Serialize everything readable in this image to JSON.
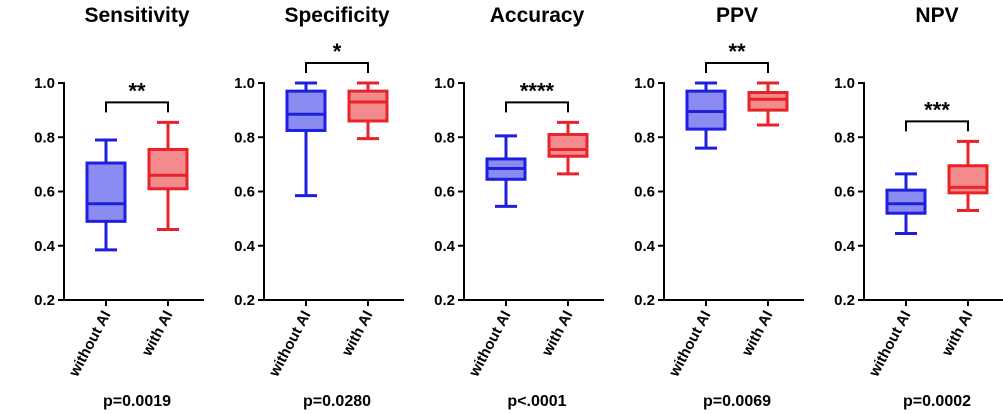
{
  "chart_data": [
    {
      "type": "box",
      "title": "Sensitivity",
      "categories": [
        "without AI",
        "with AI"
      ],
      "ylim": [
        0.2,
        1.0
      ],
      "yticks": [
        "0.2",
        "0.4",
        "0.6",
        "0.8",
        "1.0"
      ],
      "boxes": [
        {
          "category": "without AI",
          "min": 0.385,
          "q1": 0.49,
          "median": 0.555,
          "q3": 0.705,
          "max": 0.79
        },
        {
          "category": "with AI",
          "min": 0.46,
          "q1": 0.61,
          "median": 0.66,
          "q3": 0.755,
          "max": 0.855
        }
      ],
      "significance": "**",
      "p_value": "p=0.0019"
    },
    {
      "type": "box",
      "title": "Specificity",
      "categories": [
        "without AI",
        "with AI"
      ],
      "ylim": [
        0.2,
        1.0
      ],
      "yticks": [
        "0.2",
        "0.4",
        "0.6",
        "0.8",
        "1.0"
      ],
      "boxes": [
        {
          "category": "without AI",
          "min": 0.585,
          "q1": 0.825,
          "median": 0.885,
          "q3": 0.97,
          "max": 1.0
        },
        {
          "category": "with AI",
          "min": 0.795,
          "q1": 0.86,
          "median": 0.93,
          "q3": 0.97,
          "max": 1.0
        }
      ],
      "significance": "*",
      "p_value": "p=0.0280"
    },
    {
      "type": "box",
      "title": "Accuracy",
      "categories": [
        "without AI",
        "with AI"
      ],
      "ylim": [
        0.2,
        1.0
      ],
      "yticks": [
        "0.2",
        "0.4",
        "0.6",
        "0.8",
        "1.0"
      ],
      "boxes": [
        {
          "category": "without AI",
          "min": 0.545,
          "q1": 0.645,
          "median": 0.685,
          "q3": 0.72,
          "max": 0.805
        },
        {
          "category": "with AI",
          "min": 0.665,
          "q1": 0.73,
          "median": 0.755,
          "q3": 0.81,
          "max": 0.855
        }
      ],
      "significance": "****",
      "p_value": "p<.0001"
    },
    {
      "type": "box",
      "title": "PPV",
      "categories": [
        "without AI",
        "with AI"
      ],
      "ylim": [
        0.2,
        1.0
      ],
      "yticks": [
        "0.2",
        "0.4",
        "0.6",
        "0.8",
        "1.0"
      ],
      "boxes": [
        {
          "category": "without AI",
          "min": 0.76,
          "q1": 0.83,
          "median": 0.895,
          "q3": 0.97,
          "max": 1.0
        },
        {
          "category": "with AI",
          "min": 0.845,
          "q1": 0.9,
          "median": 0.94,
          "q3": 0.965,
          "max": 1.0
        }
      ],
      "significance": "**",
      "p_value": "p=0.0069"
    },
    {
      "type": "box",
      "title": "NPV",
      "categories": [
        "without AI",
        "with AI"
      ],
      "ylim": [
        0.2,
        1.0
      ],
      "yticks": [
        "0.2",
        "0.4",
        "0.6",
        "0.8",
        "1.0"
      ],
      "boxes": [
        {
          "category": "without AI",
          "min": 0.445,
          "q1": 0.52,
          "median": 0.555,
          "q3": 0.605,
          "max": 0.665
        },
        {
          "category": "with AI",
          "min": 0.53,
          "q1": 0.595,
          "median": 0.615,
          "q3": 0.695,
          "max": 0.785
        }
      ],
      "significance": "***",
      "p_value": "p=0.0002"
    }
  ],
  "colors": {
    "without_ai_stroke": "#1f1fe0",
    "without_ai_fill": "#8a8cf2",
    "with_ai_stroke": "#e8232a",
    "with_ai_fill": "#f38a8c",
    "axis": "#000000"
  }
}
